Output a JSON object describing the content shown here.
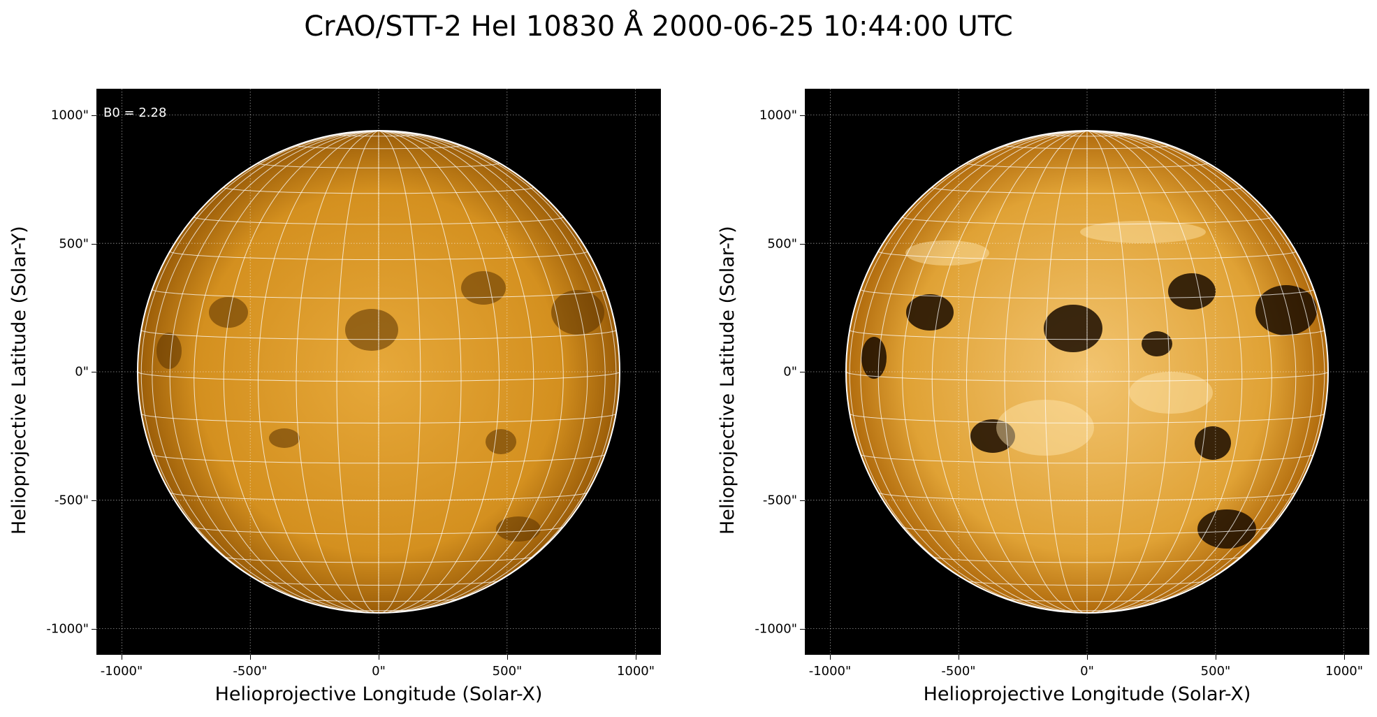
{
  "figure_title": "CrAO/STT-2 HeI 10830 Å 2000-06-25 10:44:00 UTC",
  "panels": [
    {
      "id": "left",
      "annotation": "B0 = 2.28",
      "xlabel": "Helioprojective Longitude (Solar-X)",
      "ylabel": "Helioprojective Latitude (Solar-Y)",
      "xticks": [
        "-1000\"",
        "-500\"",
        "0\"",
        "500\"",
        "1000\""
      ],
      "yticks": [
        "1000\"",
        "500\"",
        "0\"",
        "-500\"",
        "-1000\""
      ],
      "style": "low-contrast"
    },
    {
      "id": "right",
      "annotation": "",
      "xlabel": "Helioprojective Longitude (Solar-X)",
      "ylabel": "Helioprojective Latitude (Solar-Y)",
      "xticks": [
        "-1000\"",
        "-500\"",
        "0\"",
        "500\"",
        "1000\""
      ],
      "yticks": [
        "1000\"",
        "500\"",
        "0\"",
        "-500\"",
        "-1000\""
      ],
      "style": "high-contrast"
    }
  ],
  "colors": {
    "background": "#000000",
    "disk_mid": "#e0a030",
    "disk_edge": "#9a5c08",
    "grid": "#ffffff"
  }
}
